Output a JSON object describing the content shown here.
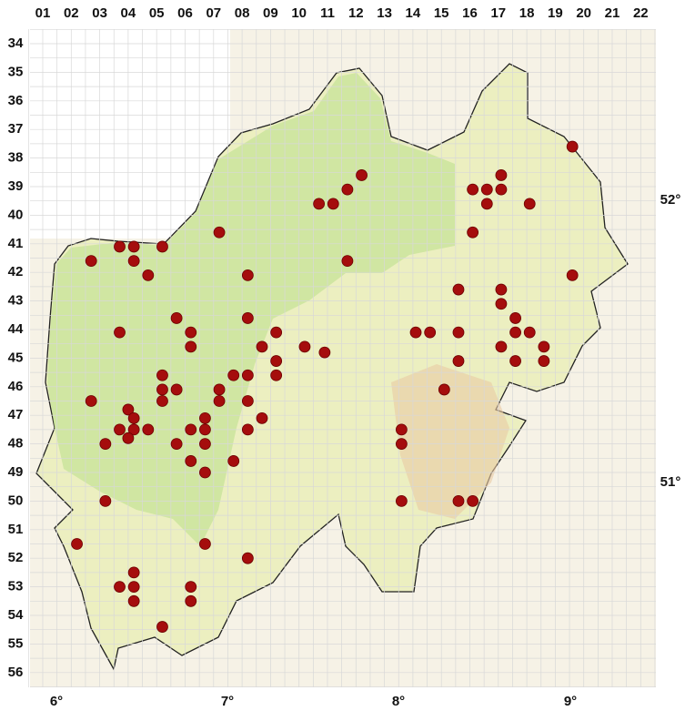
{
  "map": {
    "columns": [
      "01",
      "02",
      "03",
      "04",
      "05",
      "06",
      "07",
      "08",
      "09",
      "10",
      "11",
      "12",
      "13",
      "14",
      "15",
      "16",
      "17",
      "18",
      "19",
      "20",
      "21",
      "22"
    ],
    "rows": [
      "34",
      "35",
      "36",
      "37",
      "38",
      "39",
      "40",
      "41",
      "42",
      "43",
      "44",
      "45",
      "46",
      "47",
      "48",
      "49",
      "50",
      "51",
      "52",
      "53",
      "54",
      "55",
      "56"
    ],
    "longitudes": [
      "6°",
      "7°",
      "8°",
      "9°"
    ],
    "latitudes": [
      "52°",
      "51°"
    ],
    "points": {
      "col": [
        19.6,
        17.1,
        12.2,
        16.1,
        16.6,
        17.1,
        11.7,
        10.7,
        11.2,
        16.6,
        18.1,
        7.2,
        16.1,
        3.7,
        4.2,
        5.2,
        2.7,
        4.2,
        11.7,
        4.7,
        8.2,
        19.6,
        15.6,
        17.1,
        17.1,
        5.7,
        8.2,
        17.6,
        3.7,
        6.2,
        9.2,
        14.1,
        14.6,
        15.6,
        17.6,
        18.1,
        6.2,
        8.7,
        10.2,
        17.1,
        18.6,
        10.9,
        9.2,
        15.6,
        17.6,
        18.6,
        5.2,
        7.7,
        8.2,
        9.2,
        5.2,
        5.7,
        7.2,
        15.1,
        2.7,
        5.2,
        7.2,
        8.2,
        4.0,
        4.2,
        6.7,
        8.7,
        3.7,
        4.7,
        4.2,
        6.2,
        6.7,
        8.2,
        13.6,
        4.0,
        3.2,
        5.7,
        6.7,
        13.6,
        6.2,
        7.7,
        6.7,
        3.2,
        13.6,
        15.6,
        16.1,
        2.2,
        6.7,
        8.2,
        4.2,
        3.7,
        4.2,
        6.2,
        4.2,
        6.2,
        5.2
      ],
      "row": [
        37.6,
        38.6,
        38.6,
        39.1,
        39.1,
        39.1,
        39.1,
        39.6,
        39.6,
        39.6,
        39.6,
        40.6,
        40.6,
        41.1,
        41.1,
        41.1,
        41.6,
        41.6,
        41.6,
        42.1,
        42.1,
        42.1,
        42.6,
        42.6,
        43.1,
        43.6,
        43.6,
        43.6,
        44.1,
        44.1,
        44.1,
        44.1,
        44.1,
        44.1,
        44.1,
        44.1,
        44.6,
        44.6,
        44.6,
        44.6,
        44.6,
        44.8,
        45.1,
        45.1,
        45.1,
        45.1,
        45.6,
        45.6,
        45.6,
        45.6,
        46.1,
        46.1,
        46.1,
        46.1,
        46.5,
        46.5,
        46.5,
        46.5,
        46.8,
        47.1,
        47.1,
        47.1,
        47.5,
        47.5,
        47.5,
        47.5,
        47.5,
        47.5,
        47.5,
        47.8,
        48.0,
        48.0,
        48.0,
        48.0,
        48.6,
        48.6,
        49.0,
        50.0,
        50.0,
        50.0,
        50.0,
        51.5,
        51.5,
        52.0,
        52.5,
        53.0,
        53.0,
        53.0,
        53.5,
        53.5,
        54.4
      ]
    }
  }
}
